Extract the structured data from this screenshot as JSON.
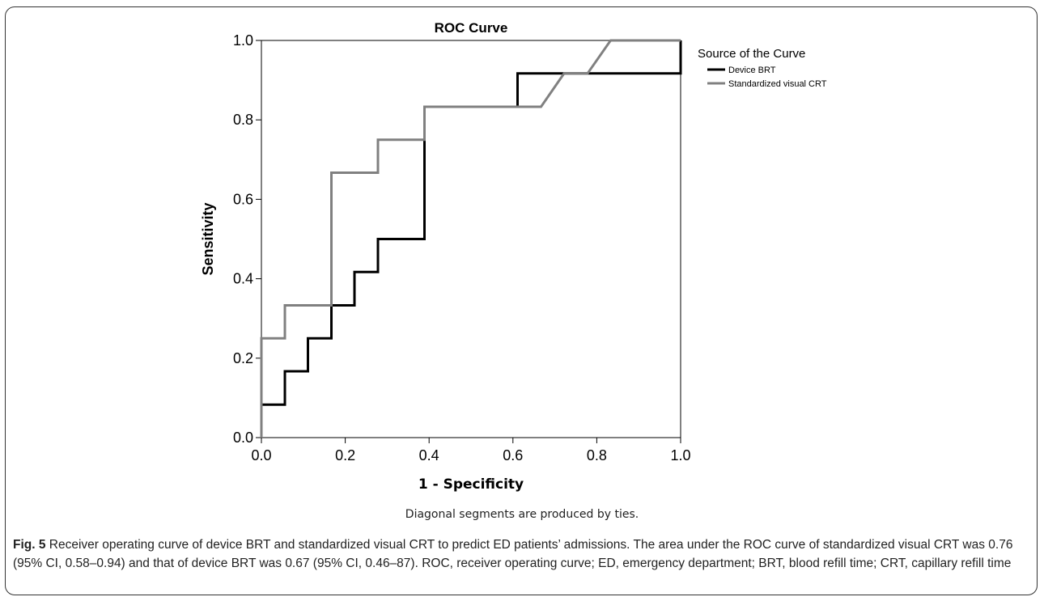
{
  "chart_data": {
    "type": "line",
    "title": "ROC Curve",
    "xlabel": "1 - Specificity",
    "ylabel": "Sensitivity",
    "xlim": [
      0,
      1
    ],
    "ylim": [
      0,
      1
    ],
    "x_ticks": [
      "0.0",
      "0.2",
      "0.4",
      "0.6",
      "0.8",
      "1.0"
    ],
    "y_ticks": [
      "0.0",
      "0.2",
      "0.4",
      "0.6",
      "0.8",
      "1.0"
    ],
    "grid": false,
    "legend": {
      "title": "Source of the Curve",
      "placement": "right"
    },
    "series": [
      {
        "name": "Device BRT",
        "color": "#000000",
        "points": [
          [
            0,
            0
          ],
          [
            0,
            0.083
          ],
          [
            0.056,
            0.083
          ],
          [
            0.056,
            0.167
          ],
          [
            0.111,
            0.167
          ],
          [
            0.111,
            0.25
          ],
          [
            0.167,
            0.25
          ],
          [
            0.167,
            0.333
          ],
          [
            0.222,
            0.333
          ],
          [
            0.222,
            0.417
          ],
          [
            0.278,
            0.417
          ],
          [
            0.278,
            0.5
          ],
          [
            0.389,
            0.5
          ],
          [
            0.389,
            0.833
          ],
          [
            0.611,
            0.833
          ],
          [
            0.611,
            0.917
          ],
          [
            1.0,
            0.917
          ],
          [
            1.0,
            1.0
          ]
        ]
      },
      {
        "name": "Standardized visual CRT",
        "color": "#808080",
        "points": [
          [
            0,
            0
          ],
          [
            0,
            0.25
          ],
          [
            0.056,
            0.25
          ],
          [
            0.056,
            0.333
          ],
          [
            0.167,
            0.333
          ],
          [
            0.167,
            0.667
          ],
          [
            0.278,
            0.667
          ],
          [
            0.278,
            0.75
          ],
          [
            0.389,
            0.75
          ],
          [
            0.389,
            0.833
          ],
          [
            0.667,
            0.833
          ],
          [
            0.722,
            0.917
          ],
          [
            0.778,
            0.917
          ],
          [
            0.833,
            1.0
          ],
          [
            1.0,
            1.0
          ]
        ]
      }
    ],
    "footnote": "Diagonal segments are produced by ties."
  },
  "caption": {
    "label": "Fig. 5",
    "text": " Receiver operating curve of device BRT and standardized visual CRT to predict ED patients’ admissions. The area under the ROC curve of standardized visual CRT was 0.76 (95% CI, 0.58–0.94) and that of device BRT was 0.67 (95% CI, 0.46–87). ROC, receiver operating curve; ED, emergency department; BRT, blood refill time; CRT, capillary refill time"
  }
}
